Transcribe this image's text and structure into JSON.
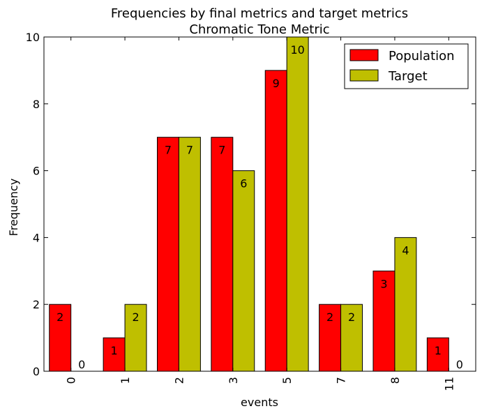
{
  "chart_data": {
    "type": "bar",
    "title": "Frequencies by final metrics and target metrics",
    "subtitle": "Chromatic Tone Metric",
    "xlabel": "events",
    "ylabel": "Frequency",
    "categories": [
      "0",
      "1",
      "2",
      "3",
      "5",
      "7",
      "8",
      "11"
    ],
    "series": [
      {
        "name": "Population",
        "color": "#ff0000",
        "values": [
          2,
          1,
          7,
          7,
          9,
          2,
          3,
          1
        ]
      },
      {
        "name": "Target",
        "color": "#bfbf00",
        "values": [
          0,
          2,
          7,
          6,
          10,
          2,
          4,
          0
        ]
      }
    ],
    "ylim": [
      0,
      10
    ],
    "yticks": [
      0,
      2,
      4,
      6,
      8,
      10
    ],
    "grid": false,
    "legend": "top-right"
  }
}
